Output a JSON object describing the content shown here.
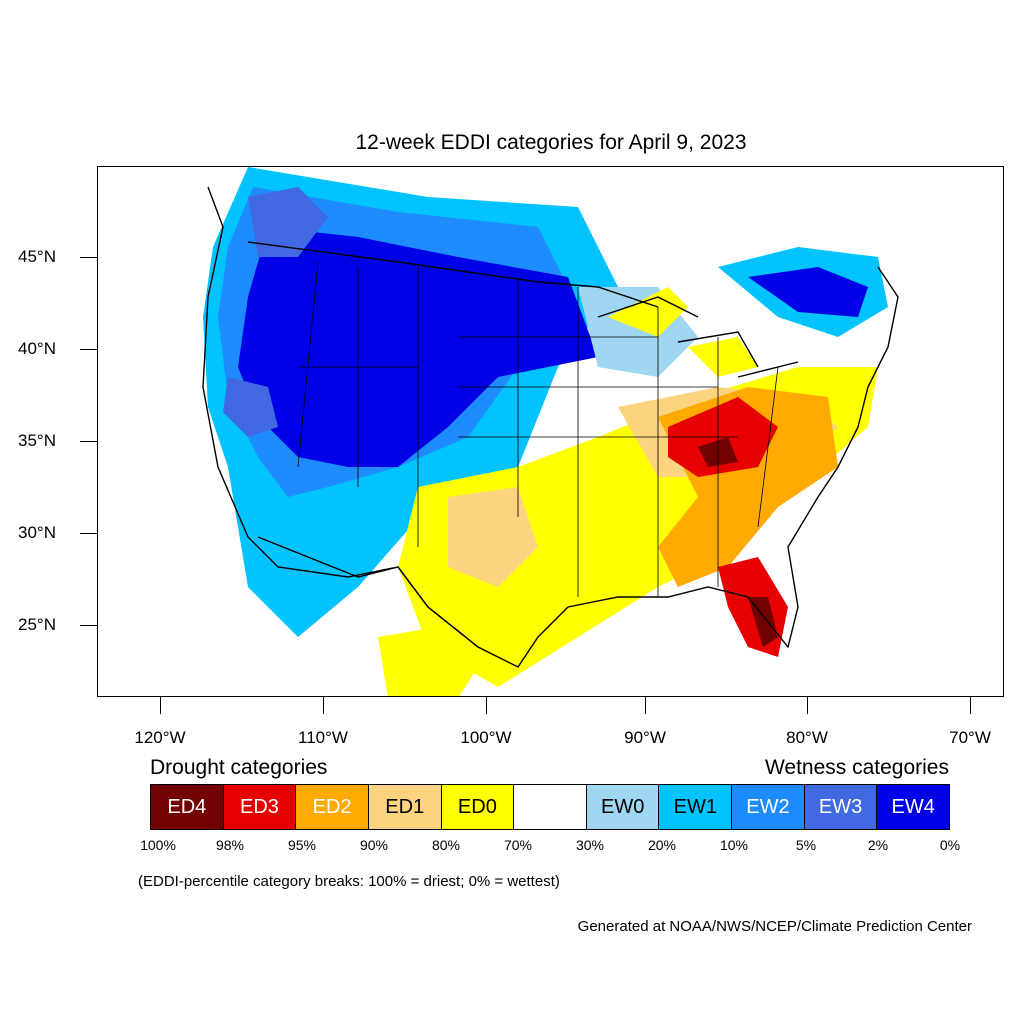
{
  "title": "12-week EDDI categories for April 9, 2023",
  "latitude_labels": [
    "45°N",
    "40°N",
    "35°N",
    "30°N",
    "25°N"
  ],
  "longitude_labels": [
    "120°W",
    "110°W",
    "100°W",
    "90°W",
    "80°W",
    "70°W"
  ],
  "legend": {
    "drought_heading": "Drought categories",
    "wetness_heading": "Wetness categories",
    "categories": [
      {
        "label": "ED4",
        "color": "#730000"
      },
      {
        "label": "ED3",
        "color": "#e60000"
      },
      {
        "label": "ED2",
        "color": "#ffaa00"
      },
      {
        "label": "ED1",
        "color": "#fcd37f"
      },
      {
        "label": "ED0",
        "color": "#ffff00"
      },
      {
        "label": "",
        "color": "#ffffff"
      },
      {
        "label": "EW0",
        "color": "#9fd6f1"
      },
      {
        "label": "EW1",
        "color": "#00c3ff"
      },
      {
        "label": "EW2",
        "color": "#1e8cff"
      },
      {
        "label": "EW3",
        "color": "#4169e1"
      },
      {
        "label": "EW4",
        "color": "#0000e6"
      }
    ],
    "break_labels": [
      "100%",
      "98%",
      "95%",
      "90%",
      "80%",
      "70%",
      "30%",
      "20%",
      "10%",
      "5%",
      "2%",
      "0%"
    ],
    "note": "(EDDI-percentile category breaks: 100% = driest; 0% = wettest)"
  },
  "credit": "Generated at NOAA/NWS/NCEP/Climate Prediction Center"
}
